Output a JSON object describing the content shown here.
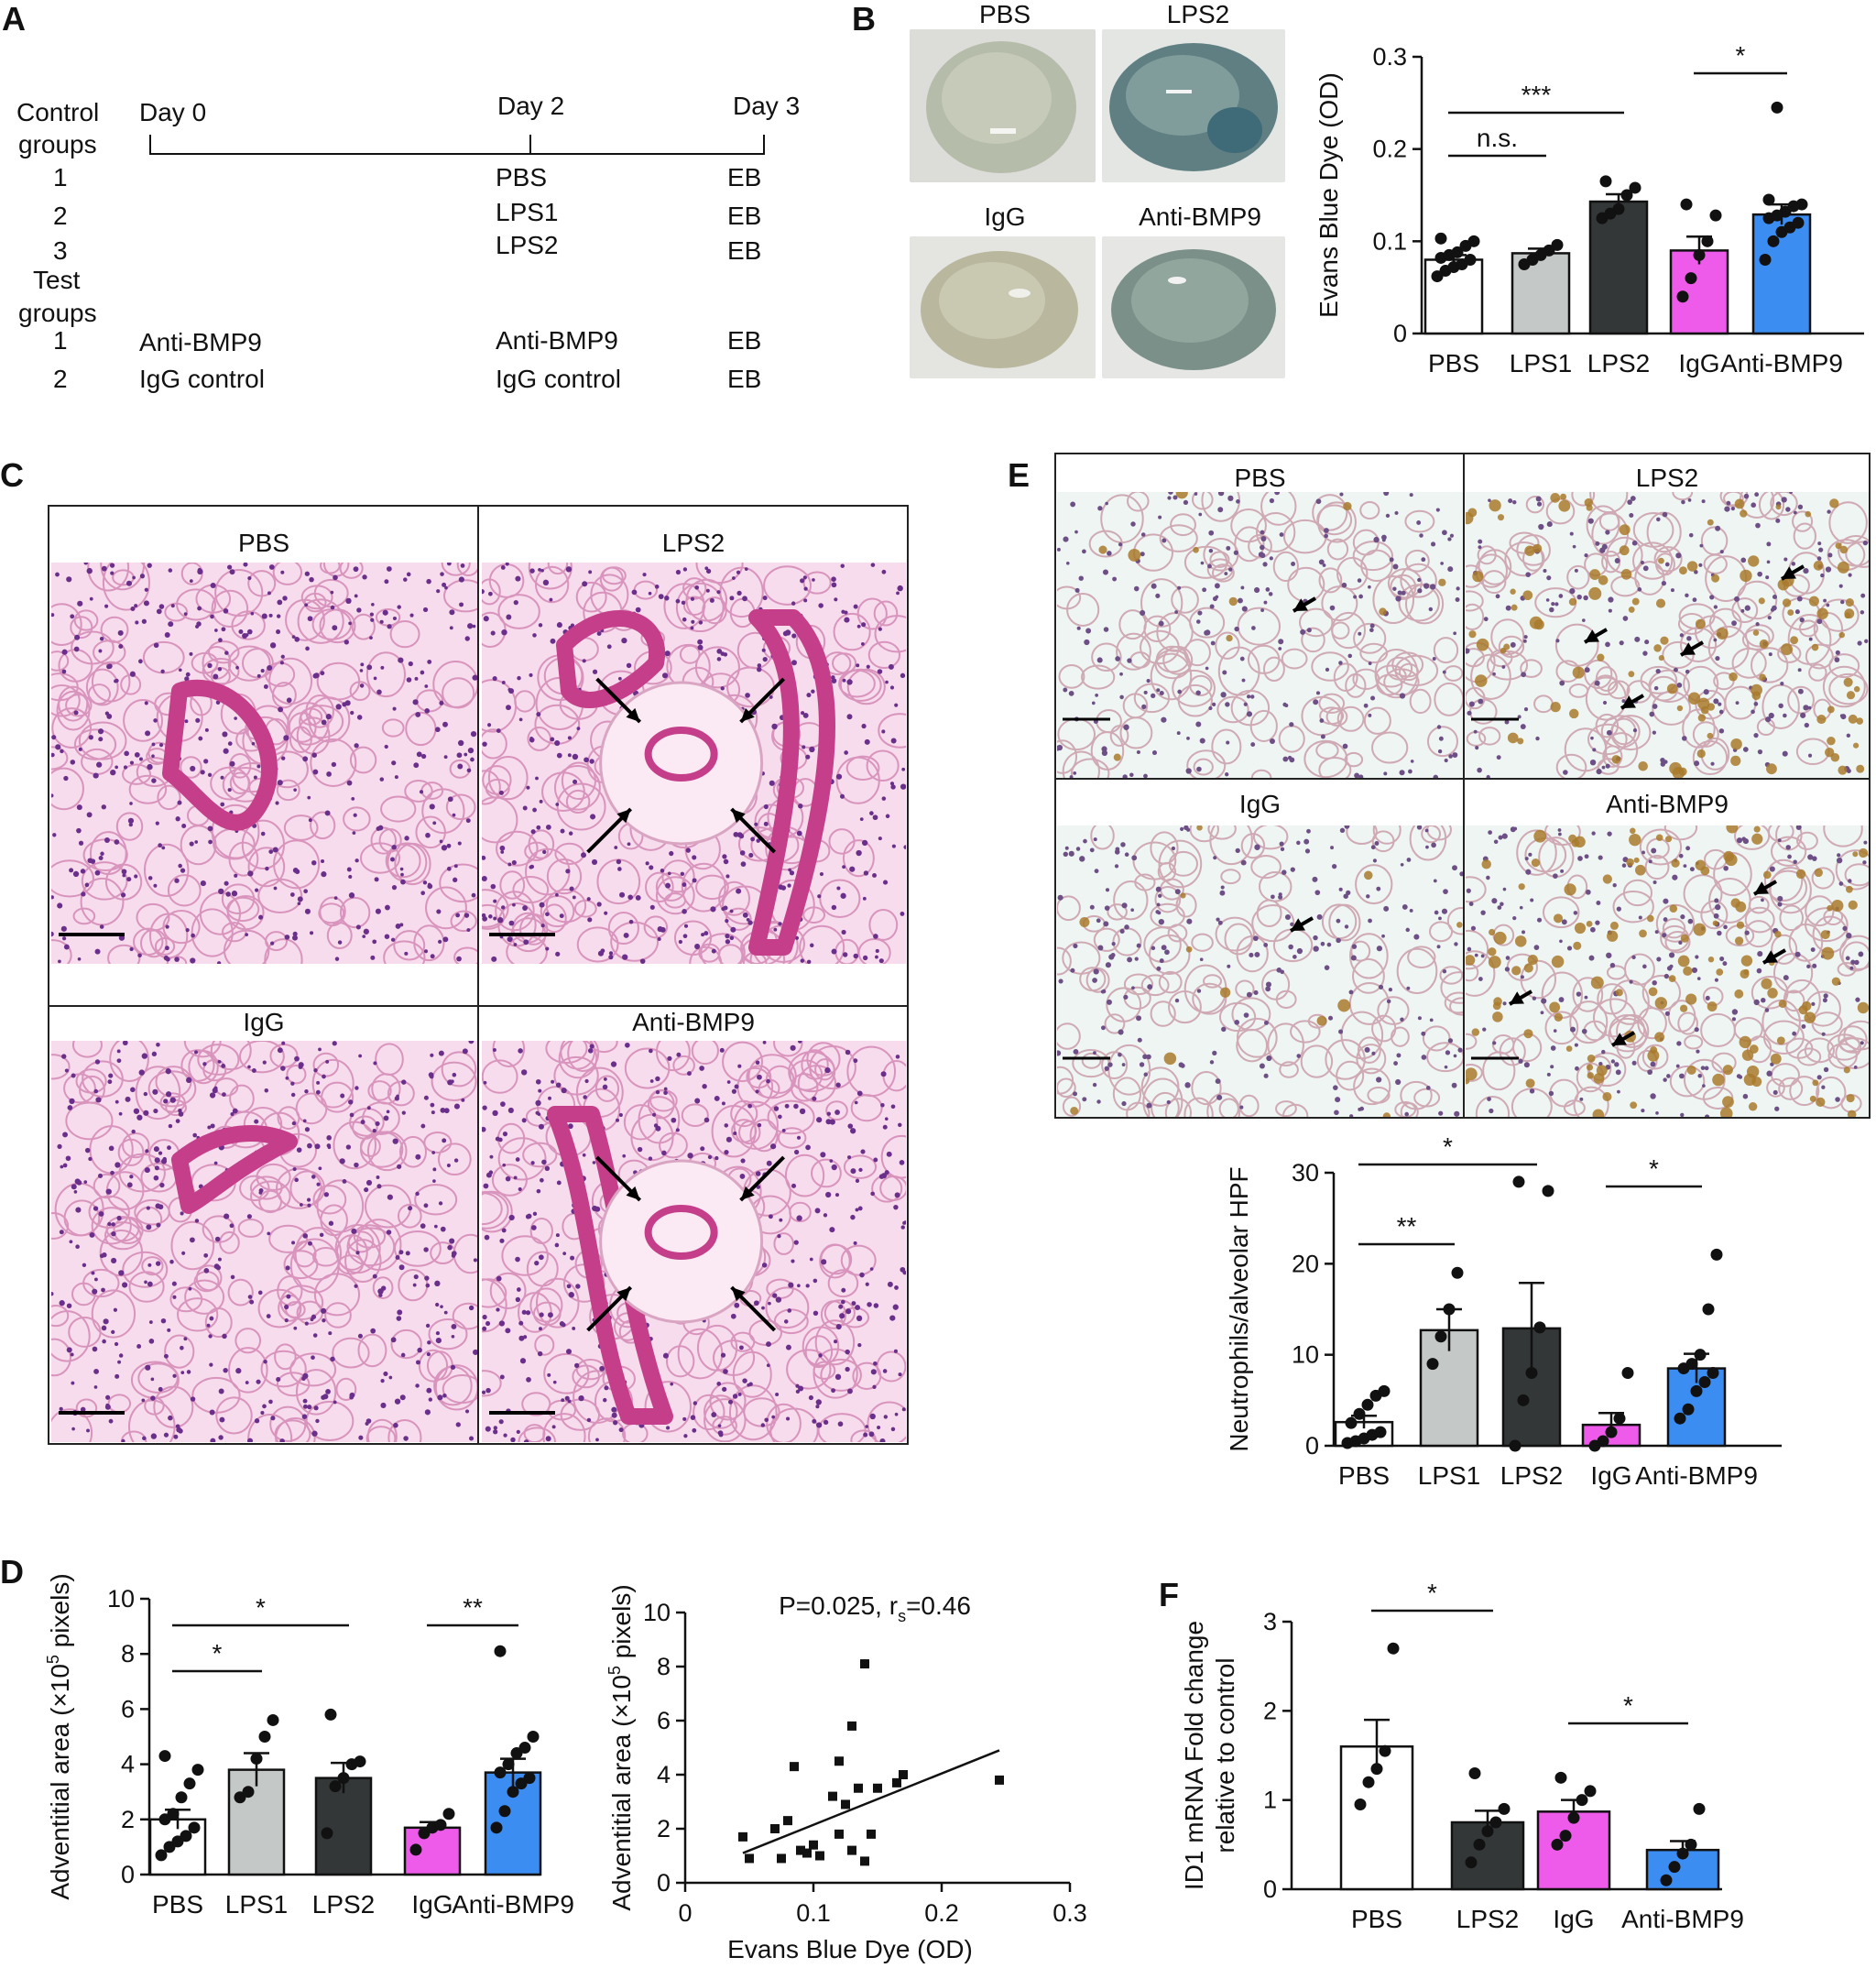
{
  "panels": {
    "A": "A",
    "B": "B",
    "C": "C",
    "D": "D",
    "E": "E",
    "F": "F"
  },
  "timeline": {
    "control_groups_label_1": "Control",
    "control_groups_label_2": "groups",
    "test_groups_label_1": "Test",
    "test_groups_label_2": "groups",
    "days": [
      "Day 0",
      "Day 2",
      "Day 3"
    ],
    "control_rows": [
      {
        "num": "1",
        "day2": "PBS",
        "day3": "EB"
      },
      {
        "num": "2",
        "day2": "LPS1",
        "day3": "EB"
      },
      {
        "num": "3",
        "day2": "LPS2",
        "day3": "EB"
      }
    ],
    "test_rows": [
      {
        "num": "1",
        "day0": "Anti-BMP9",
        "day2": "Anti-BMP9",
        "day3": "EB"
      },
      {
        "num": "2",
        "day0": "IgG control",
        "day2": "IgG control",
        "day3": "EB"
      }
    ]
  },
  "lung_photos": {
    "labels": [
      "PBS",
      "LPS2",
      "IgG",
      "Anti-BMP9"
    ]
  },
  "histology_C": {
    "labels": [
      "PBS",
      "LPS2",
      "IgG",
      "Anti-BMP9"
    ]
  },
  "ihc_E": {
    "labels": [
      "PBS",
      "LPS2",
      "IgG",
      "Anti-BMP9"
    ]
  },
  "colors": {
    "PBS": "#ffffff",
    "LPS1": "#c4c8c6",
    "LPS2": "#333738",
    "IgG": "#ee5bea",
    "Anti-BMP9": "#3c8df2",
    "he_background": "#f6dcec",
    "he_tissue": "#c43e8a",
    "ihc_background": "#eef5f2",
    "ihc_brown": "#a87a2c"
  },
  "chart_data": [
    {
      "id": "B",
      "type": "bar",
      "categories": [
        "PBS",
        "LPS1",
        "LPS2",
        "IgG",
        "Anti-BMP9"
      ],
      "values": [
        0.08,
        0.087,
        0.143,
        0.09,
        0.129
      ],
      "sem": [
        0.005,
        0.005,
        0.008,
        0.015,
        0.011
      ],
      "points": [
        [
          0.062,
          0.068,
          0.072,
          0.075,
          0.08,
          0.082,
          0.085,
          0.088,
          0.095,
          0.1,
          0.103
        ],
        [
          0.075,
          0.08,
          0.085,
          0.09,
          0.096
        ],
        [
          0.125,
          0.13,
          0.135,
          0.15,
          0.158,
          0.165
        ],
        [
          0.04,
          0.06,
          0.085,
          0.1,
          0.128,
          0.14
        ],
        [
          0.08,
          0.1,
          0.11,
          0.115,
          0.12,
          0.125,
          0.128,
          0.132,
          0.138,
          0.14,
          0.145,
          0.245
        ]
      ],
      "ylabel": "Evans Blue Dye (OD)",
      "ylim": [
        0,
        0.3
      ],
      "yticks": [
        "0",
        "0.1",
        "0.2",
        "0.3"
      ],
      "significance": [
        {
          "from": "PBS",
          "to": "LPS1",
          "label": "n.s."
        },
        {
          "from": "PBS",
          "to": "LPS2",
          "label": "***"
        },
        {
          "from": "IgG",
          "to": "Anti-BMP9",
          "label": "*"
        }
      ]
    },
    {
      "id": "E",
      "type": "bar",
      "categories": [
        "PBS",
        "LPS1",
        "LPS2",
        "IgG",
        "Anti-BMP9"
      ],
      "values": [
        2.6,
        12.7,
        12.9,
        2.3,
        8.5
      ],
      "sem": [
        0.7,
        2.3,
        5.0,
        1.3,
        1.6
      ],
      "points": [
        [
          0.3,
          0.5,
          0.8,
          1.2,
          1.5,
          2.5,
          3.5,
          4.5,
          5.5,
          6.0
        ],
        [
          9.0,
          12.0,
          15.0,
          19.0
        ],
        [
          0.0,
          5.0,
          8.0,
          13.0,
          28.0,
          29.0
        ],
        [
          0.0,
          0.5,
          1.5,
          3.0,
          8.0
        ],
        [
          3.0,
          4.0,
          6.0,
          7.0,
          8.0,
          8.5,
          9.0,
          10.0,
          15.0,
          21.0
        ]
      ],
      "ylabel": "Neutrophils/alveolar HPF",
      "ylim": [
        0,
        30
      ],
      "yticks": [
        "0",
        "10",
        "20",
        "30"
      ],
      "significance": [
        {
          "from": "PBS",
          "to": "LPS1",
          "label": "**"
        },
        {
          "from": "PBS",
          "to": "LPS2",
          "label": "*"
        },
        {
          "from": "IgG",
          "to": "Anti-BMP9",
          "label": "*"
        }
      ]
    },
    {
      "id": "D",
      "type": "bar",
      "categories": [
        "PBS",
        "LPS1",
        "LPS2",
        "IgG",
        "Anti-BMP9"
      ],
      "values": [
        2.0,
        3.8,
        3.5,
        1.7,
        3.7
      ],
      "sem": [
        0.35,
        0.6,
        0.55,
        0.2,
        0.5
      ],
      "points": [
        [
          0.7,
          1.0,
          1.2,
          1.4,
          1.7,
          2.0,
          2.2,
          2.8,
          3.3,
          3.8,
          4.3
        ],
        [
          2.8,
          3.0,
          4.2,
          5.0,
          5.6
        ],
        [
          1.5,
          3.2,
          3.5,
          4.0,
          4.1,
          5.8
        ],
        [
          0.9,
          1.5,
          1.7,
          1.8,
          2.2
        ],
        [
          1.7,
          2.3,
          3.0,
          3.3,
          3.5,
          3.7,
          4.0,
          4.4,
          4.6,
          5.0,
          8.1
        ]
      ],
      "ylabel_main": "Adventitial area (×10",
      "ylabel_sup": "5",
      "ylabel_end": " pixels)",
      "ylim": [
        0,
        10
      ],
      "yticks": [
        "0",
        "2",
        "4",
        "6",
        "8",
        "10"
      ],
      "significance": [
        {
          "from": "PBS",
          "to": "LPS1",
          "label": "*"
        },
        {
          "from": "PBS",
          "to": "LPS2",
          "label": "*"
        },
        {
          "from": "IgG",
          "to": "Anti-BMP9",
          "label": "**"
        }
      ]
    },
    {
      "id": "D-scatter",
      "type": "scatter",
      "points": [
        [
          0.045,
          1.7
        ],
        [
          0.05,
          0.9
        ],
        [
          0.07,
          2.0
        ],
        [
          0.075,
          0.9
        ],
        [
          0.08,
          2.3
        ],
        [
          0.085,
          4.3
        ],
        [
          0.09,
          1.2
        ],
        [
          0.095,
          1.1
        ],
        [
          0.1,
          1.4
        ],
        [
          0.105,
          1.0
        ],
        [
          0.115,
          3.2
        ],
        [
          0.12,
          1.8
        ],
        [
          0.12,
          4.5
        ],
        [
          0.125,
          2.9
        ],
        [
          0.13,
          5.8
        ],
        [
          0.13,
          1.2
        ],
        [
          0.135,
          3.5
        ],
        [
          0.14,
          0.8
        ],
        [
          0.14,
          8.1
        ],
        [
          0.145,
          1.8
        ],
        [
          0.15,
          3.5
        ],
        [
          0.165,
          3.7
        ],
        [
          0.17,
          4.0
        ],
        [
          0.245,
          3.8
        ]
      ],
      "fit_line": [
        [
          0.045,
          1.1
        ],
        [
          0.245,
          4.9
        ]
      ],
      "xlabel": "Evans Blue Dye (OD)",
      "ylabel_main": "Adventitial area (×10",
      "ylabel_sup": "5",
      "ylabel_end": " pixels)",
      "xlim": [
        0,
        0.3
      ],
      "ylim": [
        0,
        10
      ],
      "xticks": [
        "0",
        "0.1",
        "0.2",
        "0.3"
      ],
      "yticks": [
        "0",
        "2",
        "4",
        "6",
        "8",
        "10"
      ],
      "annotation_main": "P=0.025, r",
      "annotation_sub": "s",
      "annotation_end": "=0.46"
    },
    {
      "id": "F",
      "type": "bar",
      "categories": [
        "PBS",
        "LPS2",
        "IgG",
        "Anti-BMP9"
      ],
      "values": [
        1.6,
        0.75,
        0.87,
        0.44
      ],
      "sem": [
        0.3,
        0.13,
        0.13,
        0.1
      ],
      "points": [
        [
          0.95,
          1.2,
          1.35,
          1.55,
          2.7
        ],
        [
          0.3,
          0.5,
          0.65,
          0.75,
          0.9,
          1.3
        ],
        [
          0.5,
          0.6,
          0.8,
          1.0,
          1.1,
          1.25
        ],
        [
          0.1,
          0.25,
          0.4,
          0.5,
          0.9
        ]
      ],
      "ylabel_1": "ID1 mRNA Fold change",
      "ylabel_2": "relative to control",
      "ylim": [
        0,
        3
      ],
      "yticks": [
        "0",
        "1",
        "2",
        "3"
      ],
      "significance": [
        {
          "from": "PBS",
          "to": "LPS2",
          "label": "*"
        },
        {
          "from": "IgG",
          "to": "Anti-BMP9",
          "label": "*"
        }
      ]
    }
  ]
}
